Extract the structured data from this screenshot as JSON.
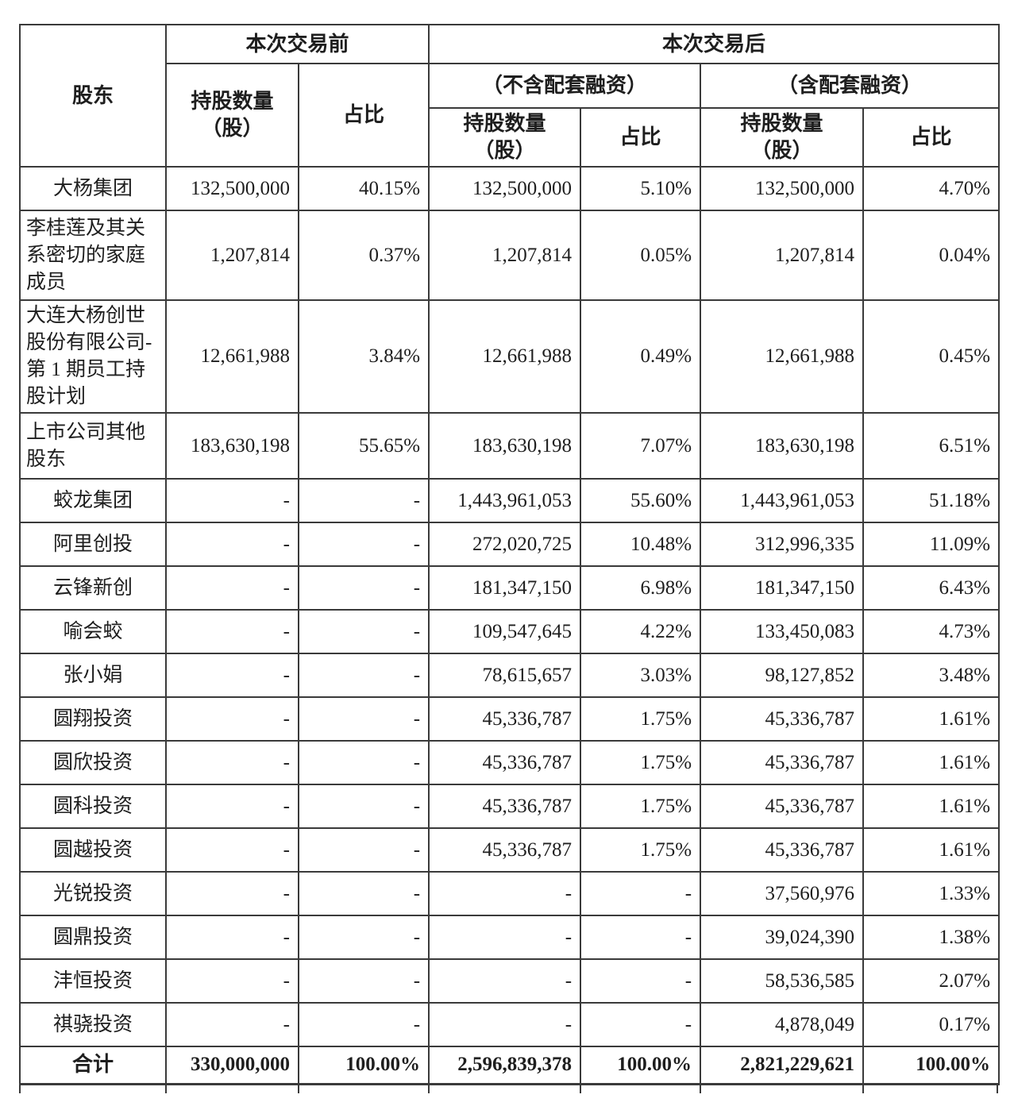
{
  "table": {
    "header": {
      "shareholder": "股东",
      "before": "本次交易前",
      "after": "本次交易后",
      "without_financing": "（不含配套融资）",
      "with_financing": "（含配套融资）",
      "shares_line1": "持股数量",
      "shares_line2": "（股）",
      "ratio": "占比"
    },
    "rows": [
      {
        "name": "大杨集团",
        "cells": [
          "132,500,000",
          "40.15%",
          "132,500,000",
          "5.10%",
          "132,500,000",
          "4.70%"
        ]
      },
      {
        "name": "李桂莲及其关系密切的家庭成员",
        "cells": [
          "1,207,814",
          "0.37%",
          "1,207,814",
          "0.05%",
          "1,207,814",
          "0.04%"
        ]
      },
      {
        "name": "大连大杨创世股份有限公司-第 1 期员工持股计划",
        "cells": [
          "12,661,988",
          "3.84%",
          "12,661,988",
          "0.49%",
          "12,661,988",
          "0.45%"
        ]
      },
      {
        "name": "上市公司其他股东",
        "cells": [
          "183,630,198",
          "55.65%",
          "183,630,198",
          "7.07%",
          "183,630,198",
          "6.51%"
        ]
      },
      {
        "name": "蛟龙集团",
        "cells": [
          "-",
          "-",
          "1,443,961,053",
          "55.60%",
          "1,443,961,053",
          "51.18%"
        ]
      },
      {
        "name": "阿里创投",
        "cells": [
          "-",
          "-",
          "272,020,725",
          "10.48%",
          "312,996,335",
          "11.09%"
        ]
      },
      {
        "name": "云锋新创",
        "cells": [
          "-",
          "-",
          "181,347,150",
          "6.98%",
          "181,347,150",
          "6.43%"
        ]
      },
      {
        "name": "喻会蛟",
        "cells": [
          "-",
          "-",
          "109,547,645",
          "4.22%",
          "133,450,083",
          "4.73%"
        ]
      },
      {
        "name": "张小娟",
        "cells": [
          "-",
          "-",
          "78,615,657",
          "3.03%",
          "98,127,852",
          "3.48%"
        ]
      },
      {
        "name": "圆翔投资",
        "cells": [
          "-",
          "-",
          "45,336,787",
          "1.75%",
          "45,336,787",
          "1.61%"
        ]
      },
      {
        "name": "圆欣投资",
        "cells": [
          "-",
          "-",
          "45,336,787",
          "1.75%",
          "45,336,787",
          "1.61%"
        ]
      },
      {
        "name": "圆科投资",
        "cells": [
          "-",
          "-",
          "45,336,787",
          "1.75%",
          "45,336,787",
          "1.61%"
        ]
      },
      {
        "name": "圆越投资",
        "cells": [
          "-",
          "-",
          "45,336,787",
          "1.75%",
          "45,336,787",
          "1.61%"
        ]
      },
      {
        "name": "光锐投资",
        "cells": [
          "-",
          "-",
          "-",
          "-",
          "37,560,976",
          "1.33%"
        ]
      },
      {
        "name": "圆鼎投资",
        "cells": [
          "-",
          "-",
          "-",
          "-",
          "39,024,390",
          "1.38%"
        ]
      },
      {
        "name": "沣恒投资",
        "cells": [
          "-",
          "-",
          "-",
          "-",
          "58,536,585",
          "2.07%"
        ]
      },
      {
        "name": "祺骁投资",
        "cells": [
          "-",
          "-",
          "-",
          "-",
          "4,878,049",
          "0.17%"
        ]
      }
    ],
    "total_row": {
      "name": "合计",
      "cells": [
        "330,000,000",
        "100.00%",
        "2,596,839,378",
        "100.00%",
        "2,821,229,621",
        "100.00%"
      ]
    }
  }
}
